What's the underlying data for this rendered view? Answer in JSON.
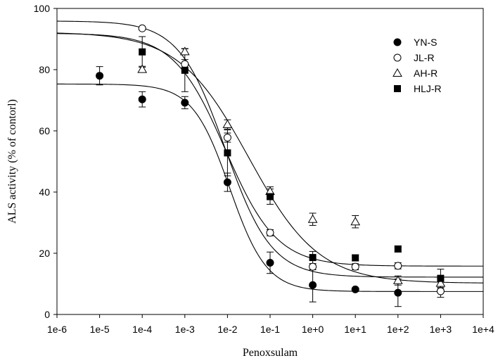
{
  "chart_data": {
    "type": "scatter",
    "title": "",
    "xlabel": "Penoxsulam",
    "ylabel": "ALS activity (% of contorl)",
    "xscale": "log10",
    "xlim_exp": [
      -6,
      4
    ],
    "x_tick_labels": [
      "1e-6",
      "1e-5",
      "1e-4",
      "1e-3",
      "1e-2",
      "1e-1",
      "1e+0",
      "1e+1",
      "1e+2",
      "1e+3",
      "1e+4"
    ],
    "ylim": [
      0,
      100
    ],
    "y_ticks": [
      0,
      20,
      40,
      60,
      80,
      100
    ],
    "legend_position": "top-right",
    "series": [
      {
        "name": "YN-S",
        "marker": "filled-circle",
        "points": [
          {
            "x_exp": -5,
            "y": 78,
            "err": 3
          },
          {
            "x_exp": -4,
            "y": 70.3,
            "err": 2.5
          },
          {
            "x_exp": -3,
            "y": 69.2,
            "err": 2
          },
          {
            "x_exp": -2,
            "y": 43.2,
            "err": 3
          },
          {
            "x_exp": -1,
            "y": 16.9,
            "err": 3.5
          },
          {
            "x_exp": 0,
            "y": 9.6,
            "err": 5.5
          },
          {
            "x_exp": 1,
            "y": 8.2,
            "err": 0.5
          },
          {
            "x_exp": 2,
            "y": 7.1,
            "err": 4.5
          }
        ],
        "fit": {
          "bottom": 7.5,
          "top": 75.3,
          "log_ec50": -1.95,
          "hill": 1.0
        }
      },
      {
        "name": "JL-R",
        "marker": "open-circle",
        "points": [
          {
            "x_exp": -4,
            "y": 93.5,
            "err": 0.5
          },
          {
            "x_exp": -3,
            "y": 81.8,
            "err": 1.5
          },
          {
            "x_exp": -2,
            "y": 57.8,
            "err": 1.5
          },
          {
            "x_exp": -1,
            "y": 26.7,
            "err": 1
          },
          {
            "x_exp": 0,
            "y": 15.6,
            "err": 1
          },
          {
            "x_exp": 1,
            "y": 15.6,
            "err": 1
          },
          {
            "x_exp": 2,
            "y": 15.9,
            "err": 1
          },
          {
            "x_exp": 3,
            "y": 7.6,
            "err": 2
          }
        ],
        "fit": {
          "bottom": 12.2,
          "top": 95.9,
          "log_ec50": -2.05,
          "hill": 0.8
        }
      },
      {
        "name": "AH-R",
        "marker": "open-triangle",
        "points": [
          {
            "x_exp": -4,
            "y": 80.1,
            "err": 1
          },
          {
            "x_exp": -3,
            "y": 85.9,
            "err": 1
          },
          {
            "x_exp": -2,
            "y": 62.1,
            "err": 1.5
          },
          {
            "x_exp": -1,
            "y": 40.2,
            "err": 1.5
          },
          {
            "x_exp": 0,
            "y": 31.1,
            "err": 2
          },
          {
            "x_exp": 1,
            "y": 30.3,
            "err": 2
          },
          {
            "x_exp": 2,
            "y": 11.1,
            "err": 1.5
          },
          {
            "x_exp": 3,
            "y": 10.2,
            "err": 1.5
          }
        ],
        "fit": {
          "bottom": 10.2,
          "top": 92.3,
          "log_ec50": -1.5,
          "hill": 0.53
        }
      },
      {
        "name": "HLJ-R",
        "marker": "filled-square",
        "points": [
          {
            "x_exp": -4,
            "y": 85.8,
            "err": 5
          },
          {
            "x_exp": -3,
            "y": 79.8,
            "err": 7
          },
          {
            "x_exp": -2,
            "y": 52.8,
            "err": 7.5
          },
          {
            "x_exp": -1,
            "y": 38.5,
            "err": 2.5
          },
          {
            "x_exp": 0,
            "y": 18.6,
            "err": 2
          },
          {
            "x_exp": 1,
            "y": 18.5,
            "err": 1
          },
          {
            "x_exp": 2,
            "y": 21.4,
            "err": 1
          },
          {
            "x_exp": 3,
            "y": 11.8,
            "err": 3
          }
        ],
        "fit": {
          "bottom": 15.8,
          "top": 91.9,
          "log_ec50": -2.05,
          "hill": 0.72
        }
      }
    ]
  }
}
